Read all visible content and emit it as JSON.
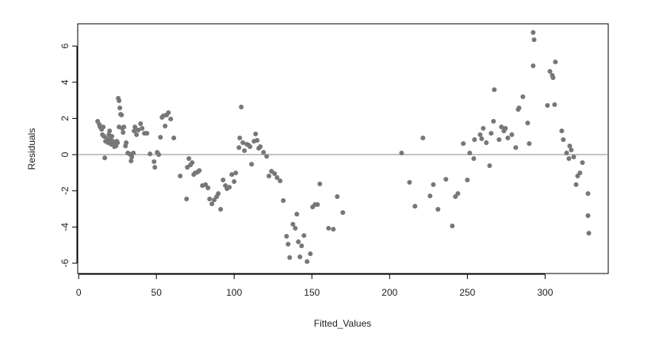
{
  "chart_data": {
    "type": "scatter",
    "x_label": "Fitted_Values",
    "y_label": "Residuals",
    "xlim": [
      -0.6,
      340.6
    ],
    "ylim": [
      -6.57,
      7.23
    ],
    "xticks": [
      0,
      50,
      100,
      150,
      200,
      250,
      300
    ],
    "yticks": [
      -6,
      -4,
      -2,
      0,
      2,
      4,
      6
    ],
    "hline": 0,
    "color": "#777777",
    "line_color": "#888888",
    "x": [
      12.2,
      13.3,
      13.8,
      14.8,
      15.8,
      15.3,
      16.3,
      16.8,
      17.3,
      18.4,
      18.9,
      19.4,
      19.9,
      20.4,
      20.9,
      21.4,
      21.9,
      22.4,
      23,
      23.5,
      24,
      24.5,
      25,
      25.5,
      26,
      26.5,
      27,
      26,
      27.6,
      28.1,
      28.6,
      29.1,
      30.1,
      30.6,
      31.6,
      32.7,
      33.7,
      34.2,
      35.2,
      35.7,
      36.2,
      37.2,
      38.3,
      39.8,
      40.8,
      42.3,
      43.9,
      45.9,
      48.5,
      49,
      50.5,
      51.5,
      52.6,
      53.6,
      54.6,
      55.6,
      56.6,
      57.7,
      59.2,
      61.2,
      65.3,
      69.4,
      69.9,
      70.9,
      71.9,
      73,
      74,
      75,
      76.5,
      77.6,
      79.6,
      81.6,
      83.2,
      84.2,
      85.7,
      87.2,
      88.8,
      89.8,
      91.3,
      92.9,
      94.4,
      95.4,
      96.9,
      98.5,
      100,
      101,
      103.1,
      103.6,
      104.6,
      105.6,
      106.6,
      108.2,
      109.2,
      110.2,
      111.2,
      112.8,
      113.8,
      114.8,
      115.8,
      116.8,
      118.9,
      120.9,
      122.4,
      124,
      126,
      127.6,
      129.6,
      131.6,
      133.7,
      134.7,
      135.7,
      137.8,
      139.3,
      140.3,
      141.3,
      142.3,
      143.4,
      144.9,
      146.9,
      149,
      150.5,
      152,
      153.6,
      155.1,
      160.7,
      163.8,
      166.3,
      169.9,
      207.7,
      212.8,
      216.3,
      221.4,
      226,
      228.1,
      231.1,
      236.2,
      240.3,
      242.3,
      243.9,
      247.4,
      250,
      251.5,
      254.1,
      254.6,
      258.2,
      259.2,
      260.2,
      262.2,
      264.3,
      265.3,
      266.8,
      267.3,
      270.4,
      271.9,
      273.5,
      274.5,
      276,
      278.6,
      281.1,
      282.7,
      283.2,
      285.7,
      288.8,
      289.8,
      292.3,
      292.9,
      292.3,
      301.5,
      303.1,
      304.6,
      305.1,
      306.1,
      306.6,
      310.7,
      311.7,
      313.8,
      315.3,
      315.8,
      316.8,
      318.4,
      319.9,
      320.9,
      322.4,
      324,
      327.6,
      327.6,
      328.1
    ],
    "y": [
      1.84,
      1.66,
      1.53,
      1.4,
      1.53,
      1.1,
      1.01,
      -0.18,
      0.74,
      0.88,
      0.66,
      1.1,
      1.31,
      0.83,
      0.57,
      1.01,
      0.74,
      0.57,
      0.44,
      0.66,
      0.48,
      0.74,
      0.66,
      3.11,
      2.98,
      2.58,
      2.23,
      1.53,
      2.19,
      1.45,
      1.23,
      1.53,
      0.48,
      0.66,
      0.09,
      0.04,
      -0.35,
      -0.13,
      0.09,
      1.31,
      1.53,
      1.1,
      1.36,
      1.71,
      1.45,
      1.18,
      1.18,
      0.04,
      -0.39,
      -0.7,
      0.13,
      0,
      0.96,
      2.06,
      2.15,
      1.58,
      2.19,
      2.32,
      1.97,
      0.92,
      -1.18,
      -2.45,
      -0.7,
      -0.22,
      -0.57,
      -0.44,
      -1.1,
      -1.01,
      -0.96,
      -0.88,
      -1.71,
      -1.66,
      -1.84,
      -2.45,
      -2.72,
      -2.5,
      -2.32,
      -2.15,
      -3.02,
      -1.4,
      -1.71,
      -1.88,
      -1.8,
      -1.1,
      -1.49,
      -1.01,
      0.39,
      0.92,
      2.63,
      0.66,
      0.22,
      0.57,
      0.53,
      0.44,
      -0.53,
      0.74,
      1.14,
      0.79,
      0.35,
      0.44,
      0.13,
      -0.09,
      -1.18,
      -0.92,
      -1.05,
      -1.27,
      -1.45,
      -2.54,
      -4.51,
      -4.95,
      -5.69,
      -3.85,
      -4.07,
      -3.29,
      -4.82,
      -5.65,
      -5.04,
      -4.47,
      -5.91,
      -5.48,
      -2.89,
      -2.76,
      -2.76,
      -1.62,
      -4.07,
      -4.12,
      -2.32,
      -3.2,
      0.09,
      -1.53,
      -2.85,
      0.92,
      -2.28,
      -1.66,
      -3.02,
      -1.36,
      -3.94,
      -2.32,
      -2.15,
      0.61,
      -1.4,
      0.09,
      -0.22,
      0.83,
      1.1,
      0.88,
      1.45,
      0.66,
      -0.61,
      1.18,
      1.84,
      3.59,
      0.83,
      1.53,
      1.31,
      1.45,
      0.92,
      1.1,
      0.39,
      2.5,
      2.58,
      3.2,
      1.75,
      0.61,
      6.75,
      6.35,
      4.91,
      2.72,
      4.6,
      4.38,
      4.25,
      2.76,
      5.12,
      1.31,
      0.83,
      0.09,
      -0.22,
      0.48,
      0.26,
      -0.13,
      -1.66,
      -1.18,
      -1.01,
      -0.44,
      -2.15,
      -3.37,
      -4.34
    ]
  }
}
